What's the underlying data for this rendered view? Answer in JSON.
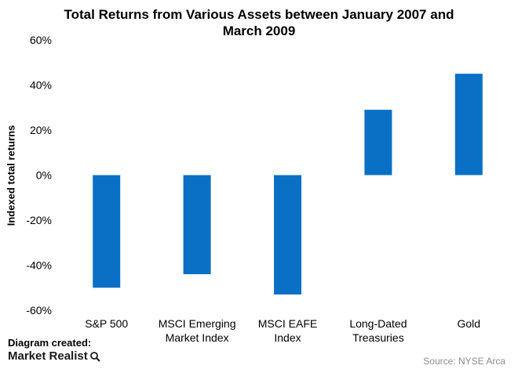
{
  "chart_data": {
    "type": "bar",
    "title_lines": [
      "Total Returns from Various Assets  between January 2007 and",
      "March 2009"
    ],
    "ylabel": "Indexed total returns",
    "xlabel": "",
    "categories": [
      [
        "S&P 500"
      ],
      [
        "MSCI Emerging",
        "Market Index"
      ],
      [
        "MSCI EAFE",
        "Index"
      ],
      [
        "Long-Dated",
        "Treasuries"
      ],
      [
        "Gold"
      ]
    ],
    "values": [
      -50,
      -44,
      -53,
      29,
      45
    ],
    "ylim": [
      -60,
      60
    ],
    "yticks": [
      60,
      40,
      20,
      0,
      -20,
      -40,
      -60
    ],
    "ytick_labels": [
      "60%",
      "40%",
      "20%",
      "0%",
      "-20%",
      "-40%",
      "-60%"
    ],
    "bar_color": "#0a70c6",
    "grid": false,
    "legend": false
  },
  "footer": {
    "credit": "Diagram created:",
    "brand": "Market Realist",
    "brand_icon": "magnifier-icon",
    "source": "Source: NYSE Arca"
  }
}
